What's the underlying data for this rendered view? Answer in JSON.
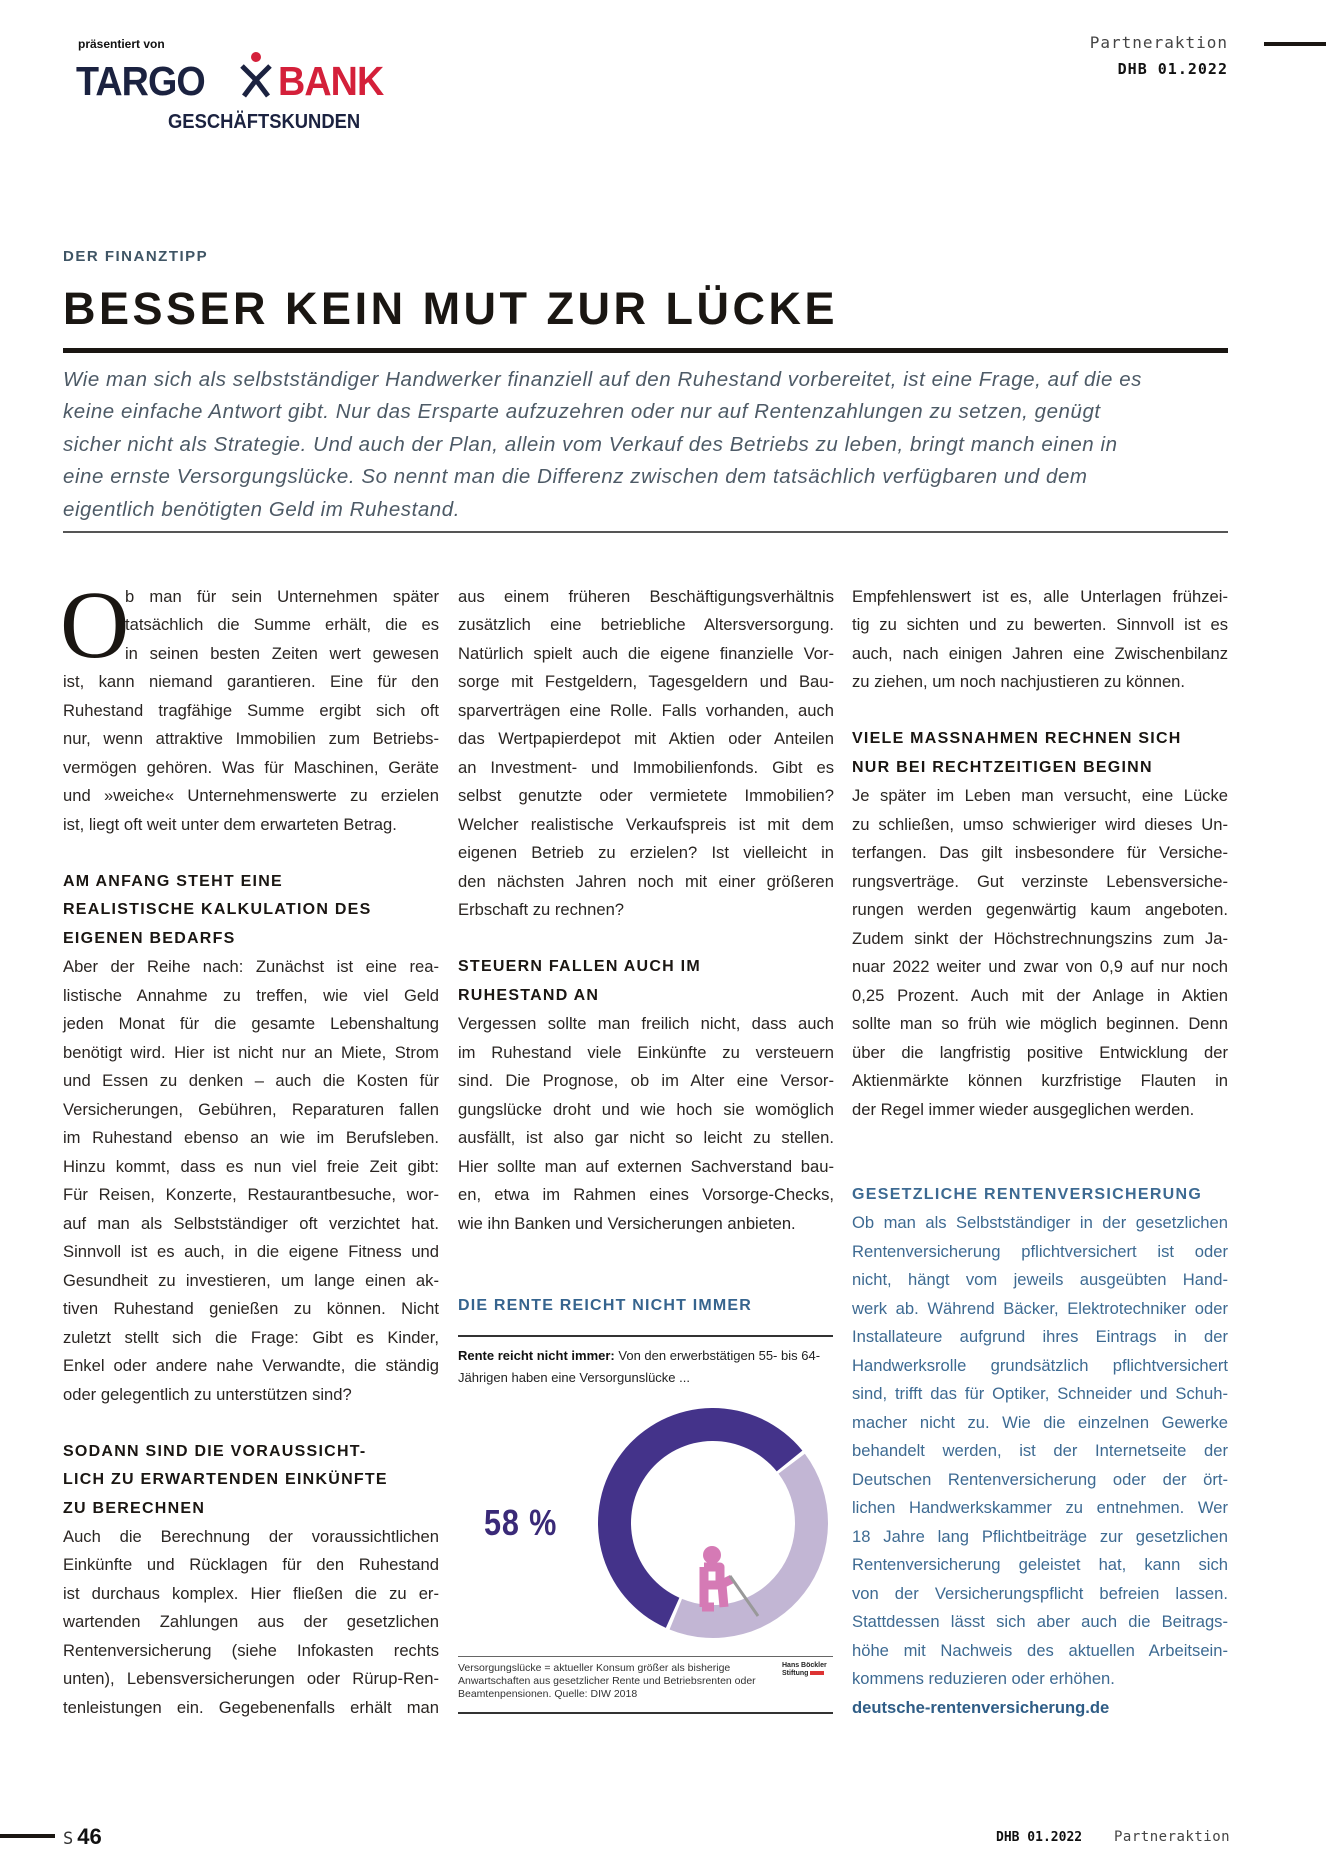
{
  "header": {
    "presented_by": "präsentiert von",
    "logo": {
      "part1": "TARGO",
      "part2": "BANK",
      "sub": "GESCHÄFTSKUNDEN"
    },
    "section": "Partneraktion",
    "issue": "DHB 01.2022"
  },
  "article": {
    "kicker": "DER FINANZTIPP",
    "title": "BESSER KEIN MUT ZUR LÜCKE",
    "intro": [
      "Wie man sich als selbstständiger Handwerker finanziell auf den Ruhestand vorbereitet, ist eine Frage, auf die es",
      "keine einfache Antwort gibt. Nur das Ersparte aufzuzehren oder nur auf Rentenzahlungen zu setzen, genügt",
      "sicher nicht als Strategie. Und auch der Plan, allein vom Verkauf des Betriebs zu leben, bringt manch einen in",
      "eine ernste Versorgungslücke. So nennt man die Differenz zwischen dem tatsächlich verfügbaren und dem",
      "eigentlich benötigten Geld im Ruhestand."
    ],
    "dropcap": "O",
    "columns": [
      {
        "blocks": [
          {
            "type": "p",
            "lines": [
              "b man für sein Unternehmen später",
              "tatsächlich die Summe erhält, die es",
              "in seinen besten Zeiten wert gewesen",
              "ist, kann niemand garantieren. Eine für den",
              "Ruhestand tragfähige Summe ergibt sich oft",
              "nur, wenn attraktive Immobilien zum Betriebs-",
              "vermögen gehören. Was für Maschinen, Geräte",
              "und »weiche« Unternehmenswerte zu erzielen",
              "ist, liegt oft weit unter dem erwarteten Betrag."
            ]
          },
          {
            "type": "h",
            "lines": [
              "AM ANFANG STEHT EINE",
              "REALISTISCHE KALKULATION DES",
              "EIGENEN BEDARFS"
            ]
          },
          {
            "type": "p",
            "lines": [
              "Aber der Reihe nach: Zunächst ist eine rea-",
              "listische Annahme zu treffen, wie viel Geld",
              "jeden Monat für die gesamte Lebenshaltung",
              "benötigt wird. Hier ist nicht nur an Miete, Strom",
              "und Essen zu denken – auch die Kosten für",
              "Versicherungen, Gebühren, Reparaturen fallen",
              "im Ruhestand ebenso an wie im Berufsleben.",
              "Hinzu kommt, dass es nun viel freie Zeit gibt:",
              "Für Reisen, Konzerte, Restaurantbesuche, wor-",
              "auf man als Selbstständiger oft verzichtet hat.",
              "Sinnvoll ist es auch, in die eigene Fitness und",
              "Gesundheit zu investieren, um lange einen ak-",
              "tiven Ruhestand genießen zu können. Nicht",
              "zuletzt stellt sich die Frage: Gibt es Kinder,",
              "Enkel oder andere nahe Verwandte, die ständig",
              "oder gelegentlich zu unterstützen sind?"
            ]
          },
          {
            "type": "h",
            "lines": [
              "SODANN SIND DIE VORAUSSICHT-",
              "LICH ZU ERWARTENDEN EINKÜNFTE",
              "ZU BERECHNEN"
            ]
          },
          {
            "type": "p",
            "lines": [
              "Auch die Berechnung der voraussichtlichen",
              "Einkünfte und Rücklagen für den Ruhestand",
              "ist durchaus komplex. Hier fließen die zu er-",
              "wartenden Zahlungen aus der gesetzlichen",
              "Rentenversicherung (siehe Infokasten rechts",
              "unten), Lebensversicherungen oder Rürup-Ren-",
              "tenleistungen ein. Gegebenenfalls erhält man"
            ]
          }
        ]
      },
      {
        "blocks": [
          {
            "type": "p",
            "lines": [
              "aus einem früheren Beschäftigungsverhältnis",
              "zusätzlich eine betriebliche Altersversorgung.",
              "Natürlich spielt auch die eigene finanzielle Vor-",
              "sorge mit Festgeldern, Tagesgeldern und Bau-",
              "sparverträgen eine Rolle. Falls vorhanden, auch",
              "das Wertpapierdepot mit Aktien oder Anteilen",
              "an Investment- und Immobilienfonds. Gibt es",
              "selbst genutzte oder vermietete Immobilien?",
              "Welcher realistische Verkaufspreis ist mit dem",
              "eigenen Betrieb zu erzielen? Ist vielleicht in",
              "den nächsten Jahren noch mit einer größeren",
              "Erbschaft zu rechnen?"
            ]
          },
          {
            "type": "h",
            "lines": [
              "STEUERN FALLEN AUCH IM",
              "RUHESTAND AN"
            ]
          },
          {
            "type": "p",
            "lines": [
              "Vergessen sollte man freilich nicht, dass auch",
              "im Ruhestand viele Einkünfte zu versteuern",
              "sind. Die Prognose, ob im Alter eine Versor-",
              "gungslücke droht und wie hoch sie womöglich",
              "ausfällt, ist also gar nicht so leicht zu stellen.",
              "Hier sollte man auf externen Sachverstand bau-",
              "en, etwa im Rahmen eines Vorsorge-Checks,",
              "wie ihn Banken und Versicherungen anbieten."
            ]
          }
        ]
      },
      {
        "blocks": [
          {
            "type": "p",
            "lines": [
              "Empfehlenswert ist es, alle Unterlagen frühzei-",
              "tig zu sichten und zu bewerten. Sinnvoll ist es",
              "auch, nach einigen Jahren eine Zwischenbilanz",
              "zu ziehen, um noch nachjustieren zu können."
            ]
          },
          {
            "type": "h",
            "lines": [
              "VIELE MASSNAHMEN RECHNEN SICH",
              "NUR BEI RECHTZEITIGEN BEGINN"
            ]
          },
          {
            "type": "p",
            "lines": [
              "Je später im Leben man versucht, eine Lücke",
              "zu schließen, umso schwieriger wird dieses Un-",
              "terfangen. Das gilt insbesondere für Versiche-",
              "rungsverträge. Gut verzinste Lebensversiche-",
              "rungen werden gegenwärtig kaum angeboten.",
              "Zudem sinkt der Höchstrechnungszins zum Ja-",
              "nuar 2022 weiter und zwar von 0,9 auf nur noch",
              "0,25 Prozent. Auch mit der Anlage in Aktien",
              "sollte man so früh wie möglich beginnen. Denn",
              "über die langfristig positive Entwicklung der",
              "Aktienmärkte können kurzfristige Flauten in",
              "der Regel immer wieder ausgeglichen werden."
            ]
          }
        ]
      }
    ],
    "infobox": {
      "title": "GESETZLICHE RENTENVERSICHERUNG",
      "lines": [
        "Ob man als Selbstständiger in der gesetzlichen",
        "Rentenversicherung pflichtversichert ist oder",
        "nicht, hängt vom jeweils ausgeübten Hand-",
        "werk ab. Während Bäcker, Elektrotechniker oder",
        "Installateure aufgrund ihres Eintrags in der",
        "Handwerksrolle grundsätzlich pflichtversichert",
        "sind, trifft das für Optiker, Schneider und Schuh-",
        "macher nicht zu. Wie die einzelnen Gewerke",
        "behandelt werden, ist der Internetseite der",
        "Deutschen Rentenversicherung oder der ört-",
        "lichen Handwerkskammer zu entnehmen. Wer",
        "18 Jahre lang Pflichtbeiträge zur gesetzlichen",
        "Rentenversicherung geleistet hat, kann sich",
        "von der Versicherungspflicht befreien lassen.",
        "Stattdessen lässt sich aber auch die Beitrags-",
        "höhe mit Nachweis des aktuellen Arbeitsein-",
        "kommens reduzieren oder erhöhen."
      ],
      "link": "deutsche-rentenversicherung.de"
    }
  },
  "chart_data": {
    "type": "pie",
    "title": "DIE RENTE REICHT NICHT IMMER",
    "subtitle_bold": "Rente reicht nicht immer:",
    "subtitle": "Von den erwerbstätigen 55- bis 64-Jährigen haben eine Versorgunslücke ...",
    "label": "58 %",
    "slices": [
      {
        "value": 58,
        "color": "#44338a"
      },
      {
        "value": 42,
        "color": "#c2b6d4"
      }
    ],
    "icon": "elderly-person-with-cane-icon",
    "icon_color": "#d57ab5",
    "note": "Versorgungslücke = aktueller Konsum größer als bisherige Anwartschaften aus gesetzlicher Rente und Betriebsrenten oder Beamtenpensionen. Quelle: DIW 2018",
    "source_logo": "Hans Böckler Stiftung"
  },
  "footer": {
    "page_prefix": "S",
    "page": "46",
    "issue": "DHB 01.2022",
    "section": "Partneraktion"
  }
}
